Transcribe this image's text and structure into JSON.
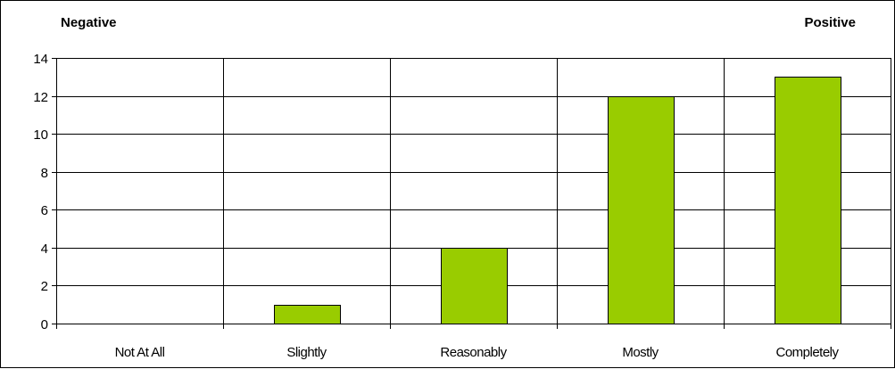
{
  "chart_data": {
    "type": "bar",
    "categories": [
      "Not At All",
      "Slightly",
      "Reasonably",
      "Mostly",
      "Completely"
    ],
    "values": [
      0,
      1,
      4,
      12,
      13
    ],
    "ylim": [
      0,
      14
    ],
    "yticks": [
      0,
      2,
      4,
      6,
      8,
      10,
      12,
      14
    ],
    "grid": true,
    "legend": "none",
    "annotations": {
      "left": "Negative",
      "right": "Positive"
    },
    "colors": {
      "bar_fill": "#99CC00",
      "bar_stroke": "#000000",
      "grid": "#000000"
    }
  }
}
